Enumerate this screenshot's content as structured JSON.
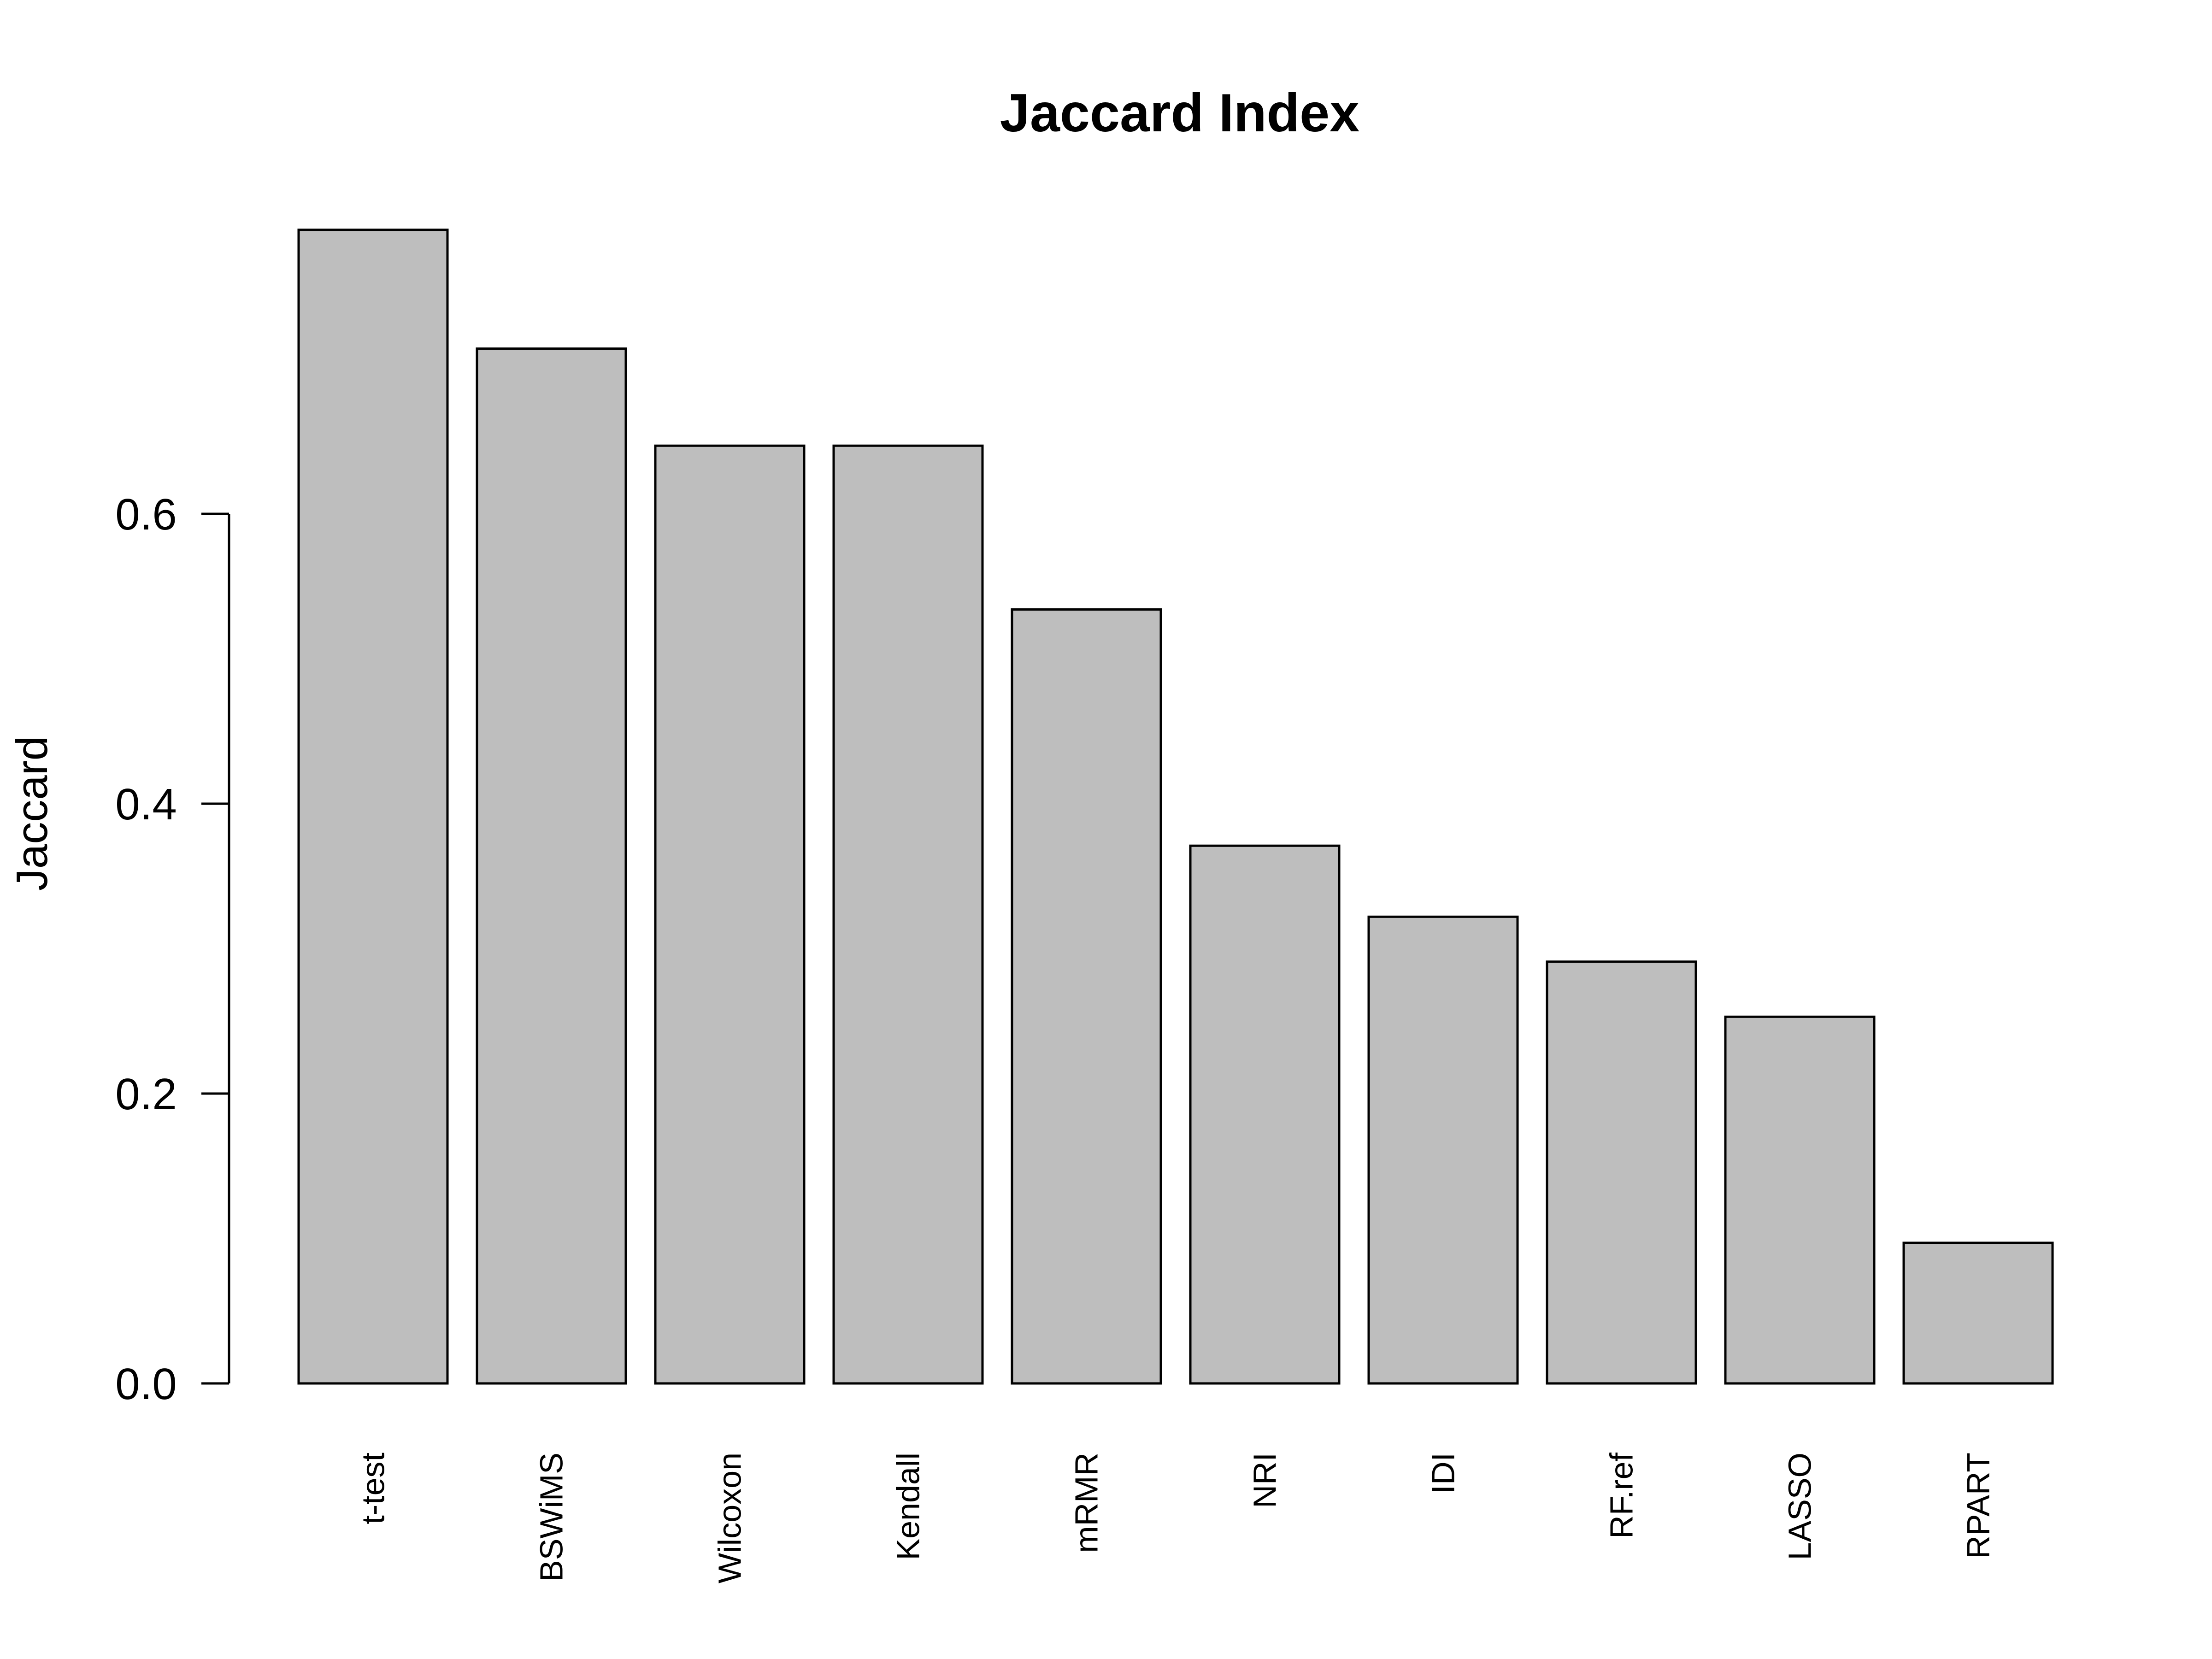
{
  "chart_data": {
    "type": "bar",
    "title": "Jaccard Index",
    "xlabel": "",
    "ylabel": "Jaccard",
    "categories": [
      "t-test",
      "BSWiMS",
      "Wilcoxon",
      "Kendall",
      "mRMR",
      "NRI",
      "IDI",
      "RF.ref",
      "LASSO",
      "RPART"
    ],
    "values": [
      0.796,
      0.714,
      0.647,
      0.647,
      0.534,
      0.371,
      0.322,
      0.291,
      0.253,
      0.097
    ],
    "yticks": [
      0.0,
      0.2,
      0.4,
      0.6
    ],
    "ytick_labels": [
      "0.0",
      "0.2",
      "0.4",
      "0.6"
    ],
    "ylim": [
      0,
      0.8
    ],
    "grid": false,
    "legend": "none",
    "colors": {
      "bar_fill": "#bebebe",
      "bar_stroke": "#000000"
    }
  }
}
